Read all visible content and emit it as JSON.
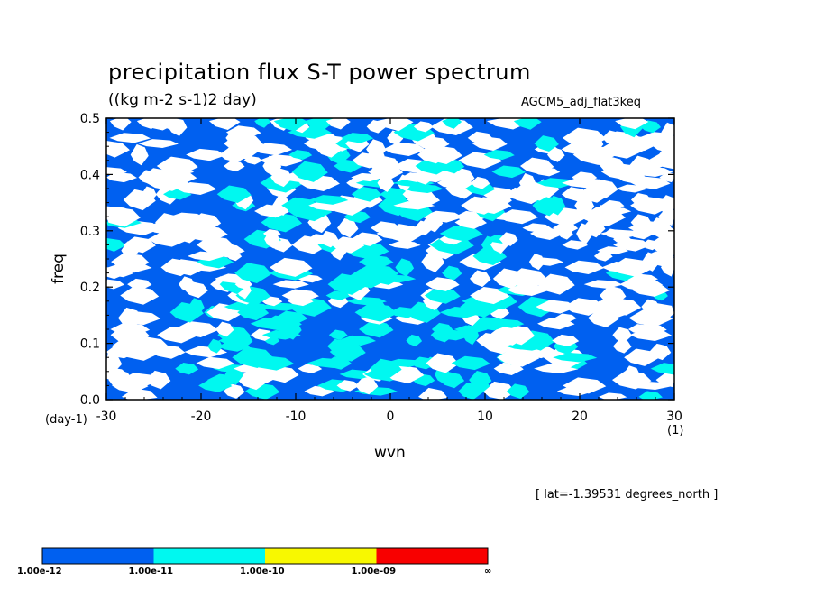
{
  "chart_data": {
    "type": "heatmap",
    "title": "precipitation flux S-T power spectrum",
    "units": "((kg m-2 s-1)2 day)",
    "experiment": "AGCM5_adj_flat3keq",
    "xlabel": "wvn",
    "ylabel": "freq",
    "x_unit": "(1)",
    "y_unit": "(day-1)",
    "xlim": [
      -30,
      30
    ],
    "ylim": [
      0.0,
      0.5
    ],
    "x_ticks": [
      "-30",
      "-20",
      "-10",
      "0",
      "10",
      "20",
      "30"
    ],
    "y_ticks": [
      "0.0",
      "0.1",
      "0.2",
      "0.3",
      "0.4",
      "0.5"
    ],
    "annotation": "[ lat=-1.39531 degrees_north ]",
    "colorbar": {
      "labels": [
        "1.00e-12",
        "1.00e-11",
        "1.00e-10",
        "1.00e-09",
        "∞"
      ],
      "colors": [
        "#0060f0",
        "#00f8f0",
        "#f8f800",
        "#f80000"
      ]
    },
    "levels": {
      "white": "below 1.00e-12",
      "blue": "1.00e-12 to 1.00e-11",
      "cyan": "1.00e-11 to 1.00e-10"
    },
    "colors": {
      "background": "#ffffff",
      "low": "#ffffff",
      "blue": "#0060f0",
      "cyan": "#00f8f0"
    }
  }
}
